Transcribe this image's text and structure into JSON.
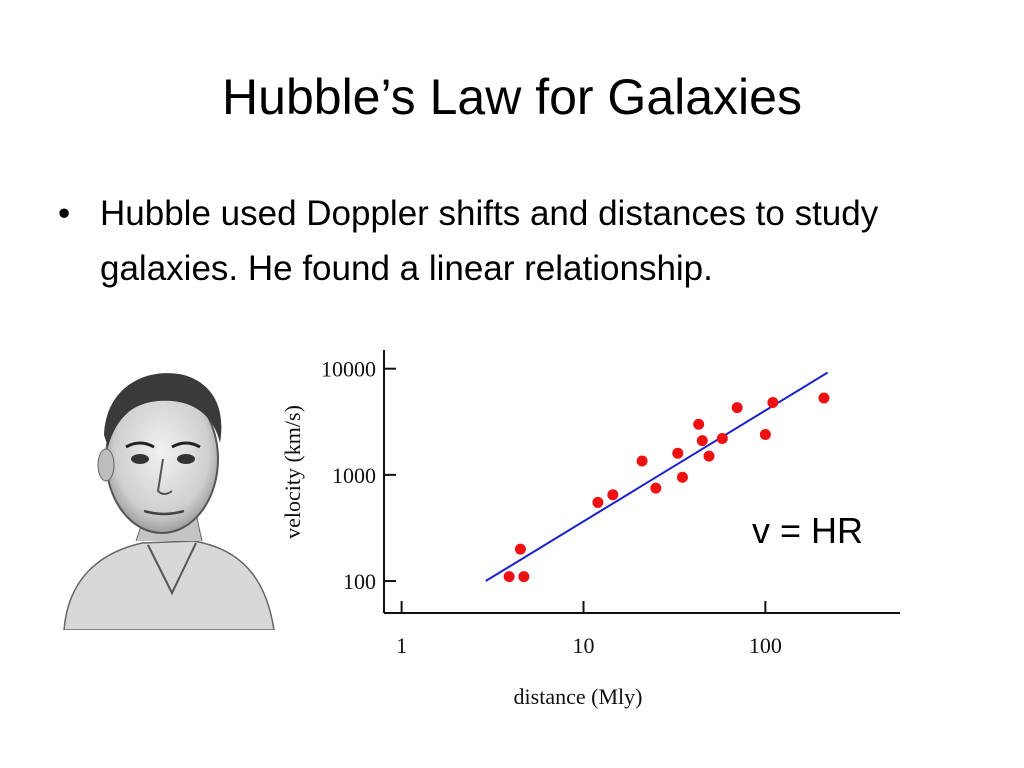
{
  "slide": {
    "title": "Hubble’s Law for Galaxies",
    "bullet_marker": "•",
    "bullet_text": "Hubble used Doppler shifts and distances to study galaxies. He found a linear relationship.",
    "equation": "v = HR"
  },
  "portrait": {
    "icon": "portrait-sketch-icon"
  },
  "chart_data": {
    "type": "scatter",
    "xlabel": "distance (Mly)",
    "ylabel": "velocity (km/s)",
    "x_scale": "log",
    "y_scale": "log",
    "xlim": [
      0.8,
      550
    ],
    "ylim": [
      50,
      15000
    ],
    "x_ticks": [
      1,
      10,
      100
    ],
    "x_tick_labels": [
      "1",
      "10",
      "100"
    ],
    "y_ticks": [
      100,
      1000,
      10000
    ],
    "y_tick_labels": [
      "100",
      "1000",
      "10000"
    ],
    "point_color": "#ee1111",
    "line_color": "#1a22cc",
    "points": [
      {
        "x": 3.9,
        "y": 110
      },
      {
        "x": 4.5,
        "y": 200
      },
      {
        "x": 4.7,
        "y": 110
      },
      {
        "x": 12,
        "y": 550
      },
      {
        "x": 14.5,
        "y": 650
      },
      {
        "x": 21,
        "y": 1350
      },
      {
        "x": 25,
        "y": 750
      },
      {
        "x": 33,
        "y": 1600
      },
      {
        "x": 35,
        "y": 950
      },
      {
        "x": 43,
        "y": 3000
      },
      {
        "x": 45,
        "y": 2100
      },
      {
        "x": 49,
        "y": 1500
      },
      {
        "x": 58,
        "y": 2200
      },
      {
        "x": 70,
        "y": 4300
      },
      {
        "x": 100,
        "y": 2400
      },
      {
        "x": 110,
        "y": 4800
      },
      {
        "x": 210,
        "y": 5300
      }
    ],
    "fit_line": [
      {
        "x": 2.9,
        "y": 100
      },
      {
        "x": 220,
        "y": 9200
      }
    ]
  }
}
